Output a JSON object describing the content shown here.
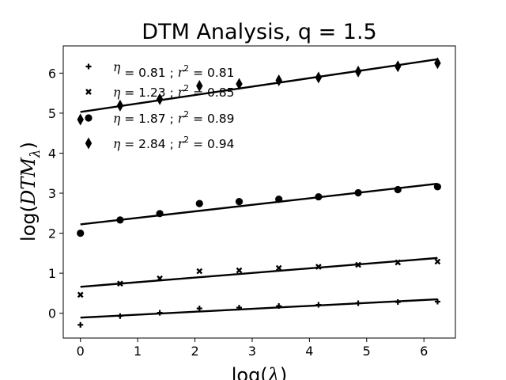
{
  "chart_data": {
    "type": "scatter",
    "title": "DTM Analysis, q = 1.5",
    "xlabel": "log(λ)",
    "ylabel": "log(DTMλ)",
    "xlim": [
      -0.3,
      6.55
    ],
    "ylim": [
      -0.62,
      6.68
    ],
    "xticks": [
      0,
      1,
      2,
      3,
      4,
      5,
      6
    ],
    "yticks": [
      0,
      1,
      2,
      3,
      4,
      5,
      6
    ],
    "grid": false,
    "legend_position": "top-left",
    "color": "#000000",
    "series": [
      {
        "name": "η = 0.81 ; r² = 0.81",
        "eta": "0.81",
        "r2": "0.81",
        "marker": "plus",
        "x": [
          0,
          0.693,
          1.386,
          2.079,
          2.773,
          3.466,
          4.159,
          4.852,
          5.545,
          6.238
        ],
        "y": [
          -0.29,
          -0.07,
          0.01,
          0.12,
          0.14,
          0.18,
          0.21,
          0.25,
          0.28,
          0.29
        ],
        "fit": {
          "slope": 0.0735,
          "intercept": -0.11
        }
      },
      {
        "name": "η = 1.23 ; r² = 0.85",
        "eta": "1.23",
        "r2": "0.85",
        "marker": "x",
        "x": [
          0,
          0.693,
          1.386,
          2.079,
          2.773,
          3.466,
          4.159,
          4.852,
          5.545,
          6.238
        ],
        "y": [
          0.46,
          0.74,
          0.87,
          1.05,
          1.07,
          1.13,
          1.16,
          1.21,
          1.27,
          1.29
        ],
        "fit": {
          "slope": 0.1155,
          "intercept": 0.66
        }
      },
      {
        "name": "η = 1.87 ; r² = 0.89",
        "eta": "1.87",
        "r2": "0.89",
        "marker": "circle",
        "x": [
          0,
          0.693,
          1.386,
          2.079,
          2.773,
          3.466,
          4.159,
          4.852,
          5.545,
          6.238
        ],
        "y": [
          2.0,
          2.33,
          2.49,
          2.74,
          2.79,
          2.85,
          2.91,
          3.01,
          3.09,
          3.16
        ],
        "fit": {
          "slope": 0.163,
          "intercept": 2.22
        }
      },
      {
        "name": "η = 2.84 ; r² = 0.94",
        "eta": "2.84",
        "r2": "0.94",
        "marker": "diamond",
        "x": [
          0,
          0.693,
          1.386,
          2.079,
          2.773,
          3.466,
          4.159,
          4.852,
          5.545,
          6.238
        ],
        "y": [
          4.84,
          5.19,
          5.35,
          5.68,
          5.73,
          5.82,
          5.89,
          6.04,
          6.17,
          6.25
        ],
        "fit": {
          "slope": 0.211,
          "intercept": 5.03
        }
      }
    ]
  }
}
